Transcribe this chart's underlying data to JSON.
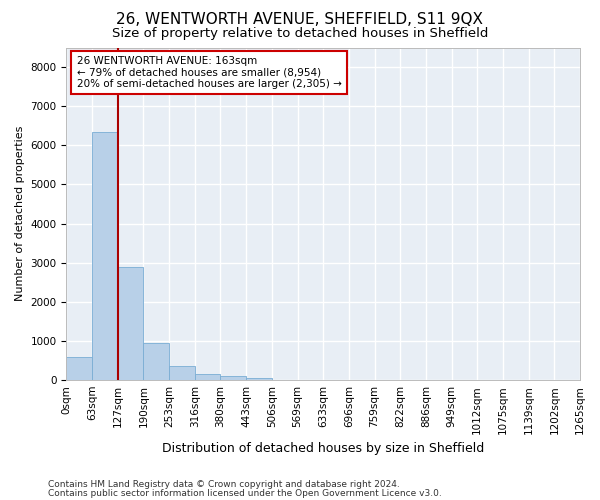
{
  "title": "26, WENTWORTH AVENUE, SHEFFIELD, S11 9QX",
  "subtitle": "Size of property relative to detached houses in Sheffield",
  "xlabel": "Distribution of detached houses by size in Sheffield",
  "ylabel": "Number of detached properties",
  "footer_line1": "Contains HM Land Registry data © Crown copyright and database right 2024.",
  "footer_line2": "Contains public sector information licensed under the Open Government Licence v3.0.",
  "bar_values": [
    600,
    6350,
    2900,
    950,
    350,
    160,
    95,
    60,
    0,
    0,
    0,
    0,
    0,
    0,
    0,
    0,
    0,
    0,
    0,
    0
  ],
  "x_labels": [
    "0sqm",
    "63sqm",
    "127sqm",
    "190sqm",
    "253sqm",
    "316sqm",
    "380sqm",
    "443sqm",
    "506sqm",
    "569sqm",
    "633sqm",
    "696sqm",
    "759sqm",
    "822sqm",
    "886sqm",
    "949sqm",
    "1012sqm",
    "1075sqm",
    "1139sqm",
    "1202sqm",
    "1265sqm"
  ],
  "bar_color": "#b8d0e8",
  "bar_edge_color": "#7aadd4",
  "bg_color": "#e8eef5",
  "grid_color": "#ffffff",
  "vline_color": "#aa0000",
  "annotation_text": "26 WENTWORTH AVENUE: 163sqm\n← 79% of detached houses are smaller (8,954)\n20% of semi-detached houses are larger (2,305) →",
  "annotation_box_color": "#cc0000",
  "ylim": [
    0,
    8500
  ],
  "yticks": [
    0,
    1000,
    2000,
    3000,
    4000,
    5000,
    6000,
    7000,
    8000
  ],
  "title_fontsize": 11,
  "subtitle_fontsize": 9.5,
  "xlabel_fontsize": 9,
  "ylabel_fontsize": 8,
  "tick_fontsize": 7.5,
  "annotation_fontsize": 7.5
}
